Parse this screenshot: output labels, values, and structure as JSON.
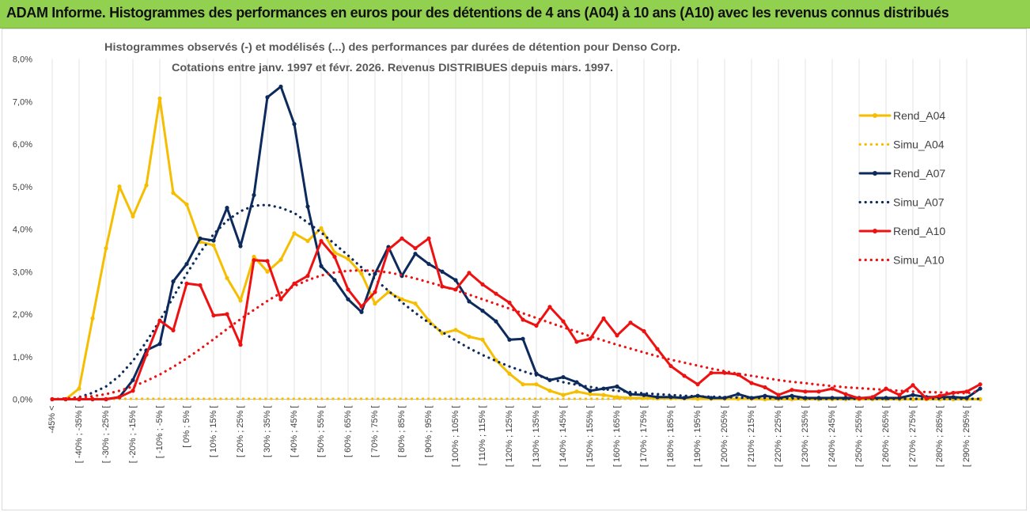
{
  "banner": {
    "text": "ADAM Informe. Histogrammes des performances en euros pour des détentions de 4 ans (A04) à 10 ans (A10) avec les revenus connus distribués"
  },
  "chart_data": {
    "type": "line",
    "title": "Histogrammes observés (-) et modélisés (...) des performances par durées de détention pour Denso Corp.",
    "subtitle": "Cotations entre janv. 1997 et févr. 2026. Revenus DISTRIBUES depuis mars. 1997.",
    "xlabel": "",
    "ylabel": "",
    "ylim": [
      0,
      8
    ],
    "y_ticks": [
      "0,0%",
      "1,0%",
      "2,0%",
      "3,0%",
      "4,0%",
      "5,0%",
      "6,0%",
      "7,0%",
      "8,0%"
    ],
    "grid": "vertical",
    "legend_position": "right",
    "categories": [
      "-45% <",
      "[ -45% ; -40% [",
      "[ -40% ; -35% [",
      "[ -35% ; -30% [",
      "[ -30% ; -25% [",
      "[ -25% ; -20% [",
      "[ -20% ; -15% [",
      "[ -15% ; -10% [",
      "[ -10% ; -5% [",
      "[ -5% ; 0% [",
      "[ 0% ; 5% [",
      "[ 5% ; 10% [",
      "[ 10% ; 15% [",
      "[ 15% ; 20% [",
      "[ 20% ; 25% [",
      "[ 25% ; 30% [",
      "[ 30% ; 35% [",
      "[ 35% ; 40% [",
      "[ 40% ; 45% [",
      "[ 45% ; 50% [",
      "[ 50% ; 55% [",
      "[ 55% ; 60% [",
      "[ 60% ; 65% [",
      "[ 65% ; 70% [",
      "[ 70% ; 75% [",
      "[ 75% ; 80% [",
      "[ 80% ; 85% [",
      "[ 85% ; 90% [",
      "[ 90% ; 95% [",
      "[ 95% ; 100% [",
      "[ 100% ; 105% [",
      "[ 105% ; 110% [",
      "[ 110% ; 115% [",
      "[ 115% ; 120% [",
      "[ 120% ; 125% [",
      "[ 125% ; 130% [",
      "[ 130% ; 135% [",
      "[ 135% ; 140% [",
      "[ 140% ; 145% [",
      "[ 145% ; 150% [",
      "[ 150% ; 155% [",
      "[ 155% ; 160% [",
      "[ 160% ; 165% [",
      "[ 165% ; 170% [",
      "[ 170% ; 175% [",
      "[ 175% ; 180% [",
      "[ 180% ; 185% [",
      "[ 185% ; 190% [",
      "[ 190% ; 195% [",
      "[ 195% ; 200% [",
      "[ 200% ; 205% [",
      "[ 205% ; 210% [",
      "[ 210% ; 215% [",
      "[ 215% ; 220% [",
      "[ 220% ; 225% [",
      "[ 225% ; 230% [",
      "[ 230% ; 235% [",
      "[ 235% ; 240% [",
      "[ 240% ; 245% [",
      "[ 245% ; 250% [",
      "[ 250% ; 255% [",
      "[ 255% ; 260% [",
      "[ 260% ; 265% [",
      "[ 265% ; 270% [",
      "[ 270% ; 275% [",
      "[ 275% ; 280% [",
      "[ 280% ; 285% [",
      "[ 285% ; 290% [",
      "[ 290% ; 295% [",
      "[ 295% ; 300% ["
    ],
    "series": [
      {
        "name": "Rend_A04",
        "style": "solid",
        "color": "#f5be00",
        "values": [
          0,
          0,
          0.25,
          1.9,
          3.55,
          5.0,
          4.3,
          5.03,
          7.07,
          4.85,
          4.58,
          3.7,
          3.62,
          2.85,
          2.32,
          3.35,
          3.0,
          3.28,
          3.9,
          3.72,
          4.02,
          3.45,
          3.3,
          2.95,
          2.25,
          2.52,
          2.35,
          2.25,
          1.85,
          1.55,
          1.63,
          1.47,
          1.4,
          0.92,
          0.6,
          0.35,
          0.35,
          0.2,
          0.1,
          0.18,
          0.12,
          0.1,
          0.05,
          0.03,
          0.03,
          0.02,
          0.02,
          0.02,
          0.01,
          0.01,
          0.01,
          0.01,
          0.01,
          0,
          0,
          0,
          0,
          0,
          0,
          0,
          0,
          0,
          0,
          0,
          0,
          0,
          0,
          0,
          0,
          0
        ]
      },
      {
        "name": "Simu_A04",
        "style": "dotted",
        "color": "#f5be00",
        "values": [
          0,
          0.01,
          0.01,
          0.01,
          0.01,
          0.01,
          0.01,
          0.01,
          0.01,
          0.01,
          0.01,
          0.01,
          0.01,
          0.01,
          0.01,
          0.01,
          0.01,
          0.01,
          0.01,
          0.01,
          0.01,
          0.01,
          0.01,
          0.01,
          0.01,
          0.01,
          0.01,
          0.01,
          0.01,
          0.01,
          0.01,
          0.01,
          0.01,
          0.01,
          0.01,
          0.01,
          0.01,
          0.01,
          0.01,
          0.01,
          0.01,
          0.01,
          0.01,
          0.01,
          0.01,
          0.01,
          0.01,
          0.01,
          0.01,
          0.01,
          0.01,
          0.01,
          0.01,
          0.01,
          0.01,
          0.01,
          0.01,
          0.01,
          0.01,
          0.01,
          0.01,
          0.01,
          0.01,
          0.01,
          0.01,
          0.01,
          0.01,
          0.01,
          0.01,
          0.01
        ]
      },
      {
        "name": "Rend_A07",
        "style": "solid",
        "color": "#0d2a5c",
        "values": [
          0,
          0,
          0,
          0,
          0,
          0.05,
          0.45,
          1.15,
          1.3,
          2.77,
          3.18,
          3.78,
          3.73,
          4.5,
          3.6,
          4.8,
          7.1,
          7.35,
          6.47,
          4.53,
          3.13,
          2.8,
          2.35,
          2.05,
          2.95,
          3.58,
          2.9,
          3.42,
          3.18,
          3.0,
          2.8,
          2.3,
          2.08,
          1.83,
          1.4,
          1.42,
          0.6,
          0.45,
          0.52,
          0.4,
          0.2,
          0.25,
          0.3,
          0.12,
          0.1,
          0.05,
          0.05,
          0.03,
          0.08,
          0.03,
          0.03,
          0.12,
          0.03,
          0.08,
          0.03,
          0.08,
          0.03,
          0.03,
          0.03,
          0.03,
          0.03,
          0.03,
          0.03,
          0.03,
          0.1,
          0.05,
          0.05,
          0.05,
          0.03,
          0.25
        ]
      },
      {
        "name": "Simu_A07",
        "style": "dotted",
        "color": "#0d2a5c",
        "values": [
          0,
          0.01,
          0.05,
          0.15,
          0.3,
          0.55,
          0.9,
          1.35,
          1.85,
          2.4,
          2.95,
          3.45,
          3.88,
          4.2,
          4.42,
          4.55,
          4.57,
          4.5,
          4.38,
          4.15,
          3.92,
          3.65,
          3.38,
          3.1,
          2.82,
          2.55,
          2.28,
          2.03,
          1.8,
          1.58,
          1.38,
          1.2,
          1.04,
          0.9,
          0.77,
          0.66,
          0.56,
          0.48,
          0.4,
          0.34,
          0.29,
          0.24,
          0.2,
          0.17,
          0.14,
          0.12,
          0.1,
          0.08,
          0.07,
          0.06,
          0.05,
          0.04,
          0.03,
          0.03,
          0.02,
          0.02,
          0.02,
          0.01,
          0.01,
          0.01,
          0.01,
          0.01,
          0.01,
          0.01,
          0.01,
          0.01,
          0.01,
          0.01,
          0.01,
          0.01
        ]
      },
      {
        "name": "Rend_A10",
        "style": "solid",
        "color": "#ee1111",
        "values": [
          0,
          0,
          0,
          0,
          0,
          0.05,
          0.2,
          1.05,
          1.85,
          1.62,
          2.72,
          2.68,
          1.97,
          2.0,
          1.28,
          3.27,
          3.25,
          2.35,
          2.72,
          2.9,
          3.72,
          3.35,
          2.58,
          2.18,
          2.52,
          3.52,
          3.78,
          3.55,
          3.78,
          2.65,
          2.58,
          2.97,
          2.7,
          2.48,
          2.27,
          1.87,
          1.73,
          2.17,
          1.83,
          1.35,
          1.42,
          1.9,
          1.5,
          1.8,
          1.6,
          1.18,
          0.78,
          0.55,
          0.35,
          0.62,
          0.62,
          0.58,
          0.38,
          0.28,
          0.1,
          0.22,
          0.18,
          0.18,
          0.25,
          0.12,
          0.02,
          0.05,
          0.25,
          0.1,
          0.33,
          0.02,
          0.08,
          0.15,
          0.18,
          0.35
        ]
      },
      {
        "name": "Simu_A10",
        "style": "dotted",
        "color": "#ee1111",
        "values": [
          0,
          0.02,
          0.04,
          0.07,
          0.12,
          0.2,
          0.3,
          0.43,
          0.58,
          0.76,
          0.96,
          1.18,
          1.41,
          1.65,
          1.88,
          2.1,
          2.31,
          2.5,
          2.66,
          2.8,
          2.91,
          2.98,
          3.02,
          3.03,
          3.02,
          2.98,
          2.92,
          2.84,
          2.75,
          2.66,
          2.56,
          2.46,
          2.35,
          2.24,
          2.13,
          2.02,
          1.91,
          1.8,
          1.69,
          1.59,
          1.48,
          1.38,
          1.28,
          1.19,
          1.1,
          1.01,
          0.93,
          0.86,
          0.79,
          0.72,
          0.66,
          0.6,
          0.55,
          0.5,
          0.45,
          0.41,
          0.38,
          0.34,
          0.31,
          0.28,
          0.26,
          0.24,
          0.22,
          0.2,
          0.18,
          0.17,
          0.16,
          0.15,
          0.14,
          0.2
        ]
      }
    ],
    "legend": [
      "Rend_A04",
      "Simu_A04",
      "Rend_A07",
      "Simu_A07",
      "Rend_A10",
      "Simu_A10"
    ]
  }
}
